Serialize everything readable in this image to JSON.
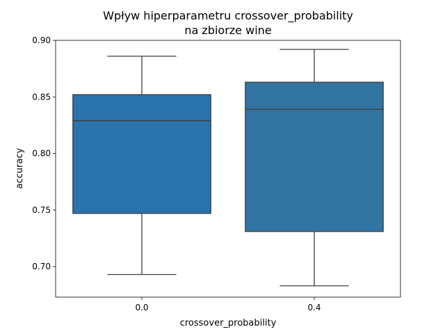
{
  "chart_data": {
    "type": "box",
    "title_lines": [
      "Wpływ hiperparametru crossover_probability",
      "na zbiorze wine"
    ],
    "xlabel": "crossover_probability",
    "ylabel": "accuracy",
    "ylim": [
      0.673,
      0.9
    ],
    "yticks": [
      0.7,
      0.75,
      0.8,
      0.85,
      0.9
    ],
    "ytick_labels": [
      "0.70",
      "0.75",
      "0.80",
      "0.85",
      "0.90"
    ],
    "grid": false,
    "colors": {
      "box": "#1f77b4",
      "line": "#3d3d3d"
    },
    "categories": [
      "0.0",
      "0.4"
    ],
    "boxes": [
      {
        "category": "0.0",
        "whisker_low": 0.693,
        "q1": 0.747,
        "median": 0.829,
        "q3": 0.852,
        "whisker_high": 0.886,
        "color": "#2a73ad"
      },
      {
        "category": "0.4",
        "whisker_low": 0.683,
        "q1": 0.731,
        "median": 0.839,
        "q3": 0.863,
        "whisker_high": 0.892,
        "color": "#3274a1"
      }
    ]
  }
}
